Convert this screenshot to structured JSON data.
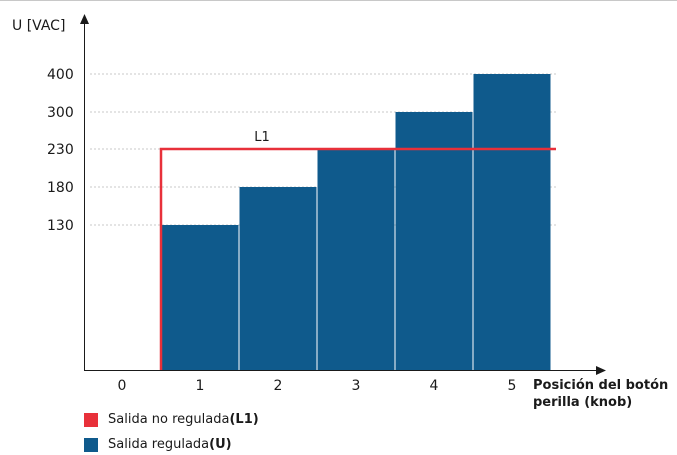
{
  "chart_data": {
    "type": "bar",
    "ylabel": "U [VAC]",
    "xlabel_line1": "Posición del botón",
    "xlabel_line2": "perilla (knob)",
    "x_ticks": [
      "0",
      "1",
      "2",
      "3",
      "4",
      "5"
    ],
    "categories": [
      "1",
      "2",
      "3",
      "4",
      "5"
    ],
    "series": [
      {
        "name": "Salida regulada",
        "values": [
          130,
          180,
          230,
          300,
          400
        ],
        "color": "#0f5a8c"
      }
    ],
    "y_ticks": [
      130,
      180,
      230,
      300,
      400
    ],
    "grid": "dotted at labeled y ticks",
    "reference_line": {
      "label": "L1",
      "value": 230,
      "from_x": 0.5,
      "color": "#e8303a"
    }
  },
  "legend": {
    "items": [
      {
        "text": "Salida no regulada ",
        "bold": "(L1)",
        "color": "#e8303a"
      },
      {
        "text": "Salida regulada",
        "bold": "(U)",
        "color": "#0f5a8c"
      }
    ]
  }
}
